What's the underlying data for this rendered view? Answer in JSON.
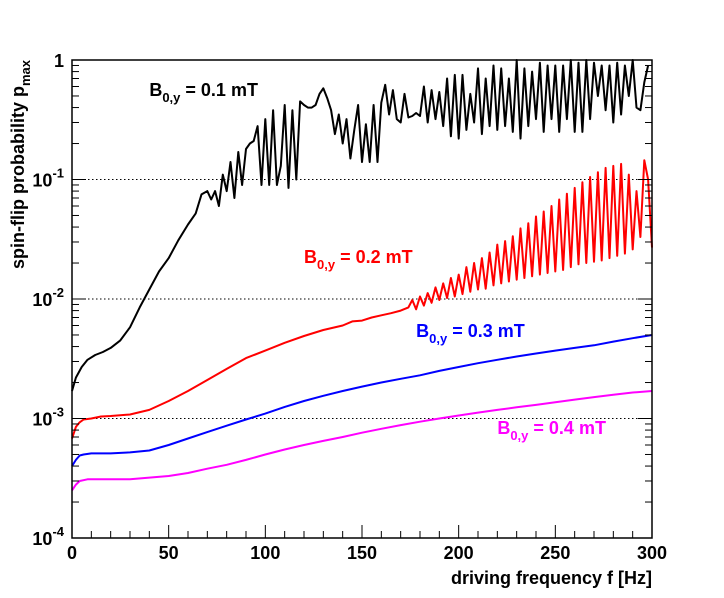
{
  "chart_data": {
    "type": "line",
    "title": "",
    "xlabel": "driving frequency f [Hz]",
    "ylabel": {
      "main": "spin-flip probability p",
      "sub": "max"
    },
    "xlim": [
      0,
      300
    ],
    "ylim": [
      0.0001,
      1
    ],
    "yscale": "log",
    "x_ticks": [
      {
        "value": 0,
        "label": "0"
      },
      {
        "value": 50,
        "label": "50"
      },
      {
        "value": 100,
        "label": "100"
      },
      {
        "value": 150,
        "label": "150"
      },
      {
        "value": 200,
        "label": "200"
      },
      {
        "value": 250,
        "label": "250"
      },
      {
        "value": 300,
        "label": "300"
      }
    ],
    "y_ticks": [
      {
        "value": 1,
        "base": "1",
        "exp": ""
      },
      {
        "value": 0.1,
        "base": "10",
        "exp": "-1"
      },
      {
        "value": 0.01,
        "base": "10",
        "exp": "-2"
      },
      {
        "value": 0.001,
        "base": "10",
        "exp": "-3"
      },
      {
        "value": 0.0001,
        "base": "10",
        "exp": "-4"
      }
    ],
    "gridlines_y": [
      0.1,
      0.01,
      0.001
    ],
    "series": [
      {
        "name": "B0,y = 0.1 mT",
        "label": {
          "pre": "B",
          "sub": "0,y",
          "post": " = 0.1 mT",
          "at_x": 40,
          "at_y": 0.5
        },
        "color": "#000000",
        "points": [
          [
            0,
            0.0017
          ],
          [
            2,
            0.0022
          ],
          [
            5,
            0.0027
          ],
          [
            8,
            0.0031
          ],
          [
            12,
            0.0034
          ],
          [
            16,
            0.0036
          ],
          [
            20,
            0.0039
          ],
          [
            25,
            0.0045
          ],
          [
            30,
            0.0058
          ],
          [
            35,
            0.0085
          ],
          [
            40,
            0.012
          ],
          [
            45,
            0.017
          ],
          [
            50,
            0.022
          ],
          [
            55,
            0.031
          ],
          [
            60,
            0.042
          ],
          [
            64,
            0.052
          ],
          [
            67,
            0.075
          ],
          [
            70,
            0.08
          ],
          [
            72,
            0.068
          ],
          [
            74,
            0.08
          ],
          [
            76,
            0.06
          ],
          [
            78,
            0.11
          ],
          [
            80,
            0.08
          ],
          [
            82,
            0.14
          ],
          [
            84,
            0.07
          ],
          [
            86,
            0.17
          ],
          [
            88,
            0.09
          ],
          [
            90,
            0.18
          ],
          [
            92,
            0.2
          ],
          [
            94,
            0.21
          ],
          [
            96,
            0.28
          ],
          [
            98,
            0.09
          ],
          [
            100,
            0.32
          ],
          [
            102,
            0.09
          ],
          [
            104,
            0.38
          ],
          [
            106,
            0.09
          ],
          [
            108,
            0.13
          ],
          [
            110,
            0.42
          ],
          [
            112,
            0.085
          ],
          [
            114,
            0.38
          ],
          [
            116,
            0.1
          ],
          [
            118,
            0.45
          ],
          [
            120,
            0.42
          ],
          [
            122,
            0.4
          ],
          [
            124,
            0.4
          ],
          [
            126,
            0.42
          ],
          [
            128,
            0.52
          ],
          [
            130,
            0.58
          ],
          [
            132,
            0.48
          ],
          [
            134,
            0.38
          ],
          [
            136,
            0.24
          ],
          [
            138,
            0.35
          ],
          [
            140,
            0.2
          ],
          [
            142,
            0.32
          ],
          [
            144,
            0.15
          ],
          [
            146,
            0.26
          ],
          [
            148,
            0.42
          ],
          [
            150,
            0.14
          ],
          [
            152,
            0.29
          ],
          [
            154,
            0.14
          ],
          [
            156,
            0.42
          ],
          [
            158,
            0.14
          ],
          [
            160,
            0.44
          ],
          [
            162,
            0.62
          ],
          [
            164,
            0.35
          ],
          [
            166,
            0.56
          ],
          [
            168,
            0.32
          ],
          [
            170,
            0.3
          ],
          [
            172,
            0.52
          ],
          [
            174,
            0.33
          ],
          [
            176,
            0.34
          ],
          [
            178,
            0.36
          ],
          [
            180,
            0.34
          ],
          [
            182,
            0.6
          ],
          [
            184,
            0.3
          ],
          [
            186,
            0.56
          ],
          [
            188,
            0.32
          ],
          [
            190,
            0.54
          ],
          [
            192,
            0.28
          ],
          [
            194,
            0.7
          ],
          [
            196,
            0.23
          ],
          [
            198,
            0.75
          ],
          [
            200,
            0.22
          ],
          [
            202,
            0.75
          ],
          [
            204,
            0.26
          ],
          [
            206,
            0.52
          ],
          [
            208,
            0.3
          ],
          [
            210,
            0.85
          ],
          [
            212,
            0.24
          ],
          [
            214,
            0.7
          ],
          [
            216,
            0.28
          ],
          [
            218,
            0.9
          ],
          [
            220,
            0.26
          ],
          [
            222,
            0.85
          ],
          [
            224,
            0.28
          ],
          [
            226,
            0.7
          ],
          [
            228,
            0.25
          ],
          [
            230,
            1.0
          ],
          [
            232,
            0.22
          ],
          [
            234,
            0.85
          ],
          [
            236,
            0.28
          ],
          [
            238,
            0.8
          ],
          [
            240,
            0.32
          ],
          [
            242,
            0.95
          ],
          [
            244,
            0.25
          ],
          [
            246,
            0.9
          ],
          [
            248,
            0.32
          ],
          [
            250,
            0.9
          ],
          [
            252,
            0.25
          ],
          [
            254,
            0.9
          ],
          [
            256,
            0.32
          ],
          [
            258,
            1.0
          ],
          [
            260,
            0.25
          ],
          [
            262,
            0.95
          ],
          [
            264,
            0.25
          ],
          [
            266,
            1.0
          ],
          [
            268,
            0.32
          ],
          [
            270,
            0.95
          ],
          [
            272,
            0.5
          ],
          [
            274,
            0.9
          ],
          [
            276,
            0.38
          ],
          [
            278,
            0.9
          ],
          [
            280,
            0.3
          ],
          [
            282,
            0.95
          ],
          [
            284,
            0.35
          ],
          [
            286,
            0.9
          ],
          [
            288,
            0.5
          ],
          [
            290,
            1.0
          ],
          [
            292,
            0.4
          ],
          [
            294,
            0.38
          ],
          [
            296,
            0.65
          ],
          [
            298,
            0.9
          ]
        ]
      },
      {
        "name": "B0,y = 0.2 mT",
        "label": {
          "pre": "B",
          "sub": "0,y",
          "post": " = 0.2 mT",
          "at_x": 120,
          "at_y": 0.02
        },
        "color": "#ff0000",
        "points": [
          [
            0,
            0.00068
          ],
          [
            2,
            0.00085
          ],
          [
            4,
            0.00093
          ],
          [
            6,
            0.00098
          ],
          [
            10,
            0.001
          ],
          [
            15,
            0.00104
          ],
          [
            20,
            0.00105
          ],
          [
            30,
            0.00108
          ],
          [
            40,
            0.00118
          ],
          [
            50,
            0.0014
          ],
          [
            60,
            0.0017
          ],
          [
            70,
            0.0021
          ],
          [
            80,
            0.0026
          ],
          [
            90,
            0.0032
          ],
          [
            100,
            0.0037
          ],
          [
            110,
            0.0043
          ],
          [
            120,
            0.0049
          ],
          [
            130,
            0.0055
          ],
          [
            140,
            0.006
          ],
          [
            145,
            0.0065
          ],
          [
            150,
            0.0066
          ],
          [
            155,
            0.007
          ],
          [
            160,
            0.0073
          ],
          [
            165,
            0.0076
          ],
          [
            170,
            0.008
          ],
          [
            174,
            0.0085
          ],
          [
            176,
            0.0098
          ],
          [
            178,
            0.0082
          ],
          [
            180,
            0.0105
          ],
          [
            182,
            0.0088
          ],
          [
            184,
            0.0112
          ],
          [
            186,
            0.0093
          ],
          [
            188,
            0.0125
          ],
          [
            190,
            0.0098
          ],
          [
            192,
            0.0135
          ],
          [
            194,
            0.0102
          ],
          [
            196,
            0.015
          ],
          [
            198,
            0.0105
          ],
          [
            200,
            0.016
          ],
          [
            202,
            0.011
          ],
          [
            204,
            0.0185
          ],
          [
            206,
            0.0115
          ],
          [
            208,
            0.02
          ],
          [
            210,
            0.012
          ],
          [
            212,
            0.022
          ],
          [
            214,
            0.0122
          ],
          [
            216,
            0.0245
          ],
          [
            218,
            0.013
          ],
          [
            220,
            0.0285
          ],
          [
            222,
            0.0135
          ],
          [
            224,
            0.0305
          ],
          [
            226,
            0.014
          ],
          [
            228,
            0.0335
          ],
          [
            230,
            0.0145
          ],
          [
            232,
            0.039
          ],
          [
            234,
            0.015
          ],
          [
            236,
            0.043
          ],
          [
            238,
            0.0155
          ],
          [
            240,
            0.049
          ],
          [
            242,
            0.016
          ],
          [
            244,
            0.054
          ],
          [
            246,
            0.0165
          ],
          [
            248,
            0.06
          ],
          [
            250,
            0.017
          ],
          [
            252,
            0.068
          ],
          [
            254,
            0.0175
          ],
          [
            256,
            0.076
          ],
          [
            258,
            0.0185
          ],
          [
            260,
            0.085
          ],
          [
            262,
            0.0195
          ],
          [
            264,
            0.095
          ],
          [
            266,
            0.02
          ],
          [
            268,
            0.105
          ],
          [
            270,
            0.0205
          ],
          [
            272,
            0.115
          ],
          [
            274,
            0.021
          ],
          [
            276,
            0.125
          ],
          [
            278,
            0.022
          ],
          [
            280,
            0.13
          ],
          [
            282,
            0.023
          ],
          [
            284,
            0.135
          ],
          [
            286,
            0.024
          ],
          [
            288,
            0.11
          ],
          [
            290,
            0.026
          ],
          [
            292,
            0.08
          ],
          [
            294,
            0.033
          ],
          [
            296,
            0.145
          ],
          [
            298,
            0.1
          ],
          [
            300,
            0.027
          ]
        ]
      },
      {
        "name": "B0,y = 0.3 mT",
        "label": {
          "pre": "B",
          "sub": "0,y",
          "post": " = 0.3 mT",
          "at_x": 178,
          "at_y": 0.0048
        },
        "color": "#0000ff",
        "points": [
          [
            0,
            0.0004
          ],
          [
            2,
            0.00045
          ],
          [
            4,
            0.00049
          ],
          [
            6,
            0.0005
          ],
          [
            10,
            0.00051
          ],
          [
            20,
            0.00051
          ],
          [
            30,
            0.00052
          ],
          [
            40,
            0.00054
          ],
          [
            50,
            0.0006
          ],
          [
            60,
            0.00068
          ],
          [
            70,
            0.00077
          ],
          [
            80,
            0.00087
          ],
          [
            90,
            0.00098
          ],
          [
            100,
            0.0011
          ],
          [
            110,
            0.00125
          ],
          [
            120,
            0.0014
          ],
          [
            130,
            0.00155
          ],
          [
            140,
            0.0017
          ],
          [
            150,
            0.00185
          ],
          [
            160,
            0.002
          ],
          [
            170,
            0.00215
          ],
          [
            180,
            0.0023
          ],
          [
            190,
            0.0025
          ],
          [
            200,
            0.0027
          ],
          [
            210,
            0.0029
          ],
          [
            220,
            0.0031
          ],
          [
            230,
            0.0033
          ],
          [
            240,
            0.0035
          ],
          [
            250,
            0.0037
          ],
          [
            260,
            0.0039
          ],
          [
            270,
            0.0041
          ],
          [
            280,
            0.0044
          ],
          [
            290,
            0.0047
          ],
          [
            300,
            0.005
          ]
        ]
      },
      {
        "name": "B0,y = 0.4 mT",
        "label": {
          "pre": "B",
          "sub": "0,y",
          "post": " = 0.4 mT",
          "at_x": 220,
          "at_y": 0.00074
        },
        "color": "#ff00ff",
        "points": [
          [
            0,
            0.00025
          ],
          [
            2,
            0.00028
          ],
          [
            4,
            0.0003
          ],
          [
            8,
            0.00031
          ],
          [
            20,
            0.00031
          ],
          [
            30,
            0.00031
          ],
          [
            40,
            0.00032
          ],
          [
            50,
            0.00033
          ],
          [
            60,
            0.00035
          ],
          [
            70,
            0.00038
          ],
          [
            80,
            0.00041
          ],
          [
            90,
            0.00045
          ],
          [
            100,
            0.0005
          ],
          [
            110,
            0.00055
          ],
          [
            120,
            0.0006
          ],
          [
            130,
            0.00065
          ],
          [
            140,
            0.0007
          ],
          [
            150,
            0.00076
          ],
          [
            160,
            0.00082
          ],
          [
            170,
            0.00088
          ],
          [
            180,
            0.00094
          ],
          [
            190,
            0.001
          ],
          [
            200,
            0.00106
          ],
          [
            210,
            0.00112
          ],
          [
            220,
            0.00118
          ],
          [
            230,
            0.00124
          ],
          [
            240,
            0.0013
          ],
          [
            250,
            0.00137
          ],
          [
            260,
            0.00144
          ],
          [
            270,
            0.00151
          ],
          [
            280,
            0.00158
          ],
          [
            290,
            0.00165
          ],
          [
            300,
            0.0017
          ]
        ]
      }
    ]
  }
}
